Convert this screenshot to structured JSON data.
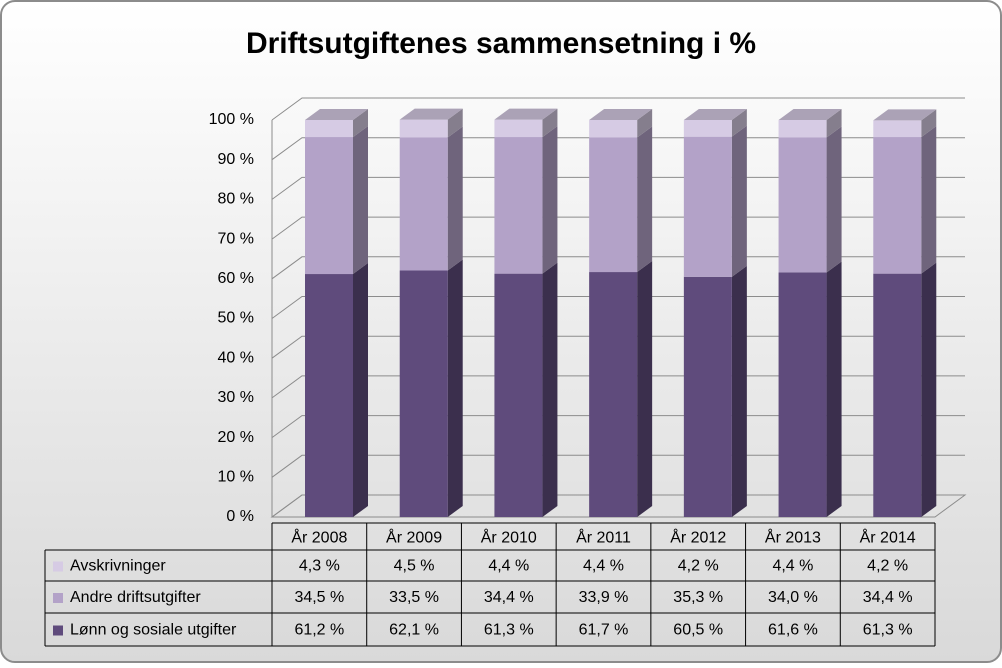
{
  "chart_data": {
    "type": "stacked-bar-3d",
    "title": "Driftsutgiftenes sammensetning i %",
    "categories": [
      "År 2008",
      "År 2009",
      "År 2010",
      "År 2011",
      "År 2012",
      "År 2013",
      "År 2014"
    ],
    "series": [
      {
        "name": "Lønn og sosiale utgifter",
        "color": "#5f4b7c",
        "values": [
          61.2,
          62.1,
          61.3,
          61.7,
          60.5,
          61.6,
          61.3
        ],
        "value_labels": [
          "61,2 %",
          "62,1 %",
          "61,3 %",
          "61,7 %",
          "60,5 %",
          "61,6 %",
          "61,3 %"
        ]
      },
      {
        "name": "Andre driftsutgifter",
        "color": "#b3a2c8",
        "values": [
          34.5,
          33.5,
          34.4,
          33.9,
          35.3,
          34.0,
          34.4
        ],
        "value_labels": [
          "34,5 %",
          "33,5 %",
          "34,4 %",
          "33,9 %",
          "35,3 %",
          "34,0 %",
          "34,4 %"
        ]
      },
      {
        "name": "Avskrivninger",
        "color": "#d6cbe4",
        "values": [
          4.3,
          4.5,
          4.4,
          4.4,
          4.2,
          4.4,
          4.2
        ],
        "value_labels": [
          "4,3 %",
          "4,5 %",
          "4,4 %",
          "4,4 %",
          "4,2 %",
          "4,4 %",
          "4,2 %"
        ]
      }
    ],
    "ylim": [
      0,
      100
    ],
    "yticks": [
      {
        "value": 0,
        "label": "0 %"
      },
      {
        "value": 10,
        "label": "10 %"
      },
      {
        "value": 20,
        "label": "20 %"
      },
      {
        "value": 30,
        "label": "30 %"
      },
      {
        "value": 40,
        "label": "40 %"
      },
      {
        "value": 50,
        "label": "50 %"
      },
      {
        "value": 60,
        "label": "60 %"
      },
      {
        "value": 70,
        "label": "70 %"
      },
      {
        "value": 80,
        "label": "80 %"
      },
      {
        "value": 90,
        "label": "90 %"
      },
      {
        "value": 100,
        "label": "100 %"
      }
    ],
    "grid": true
  }
}
